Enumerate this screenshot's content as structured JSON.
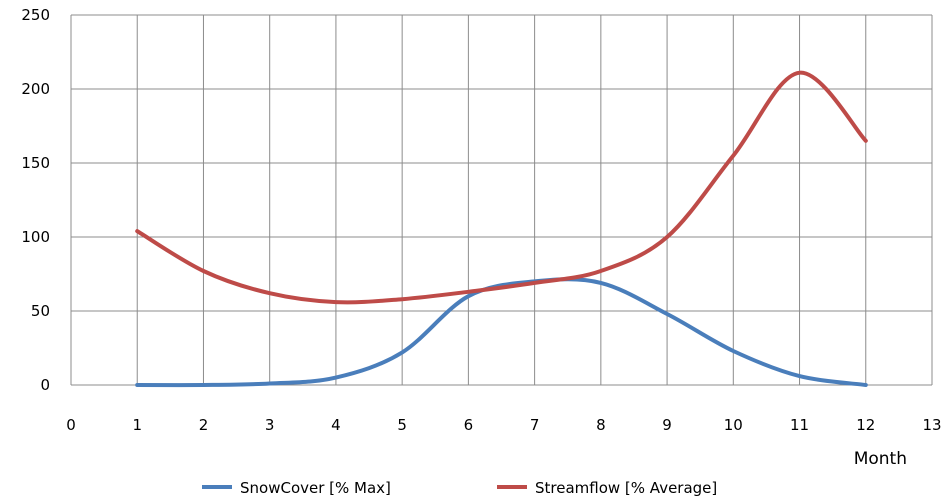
{
  "chart_data": {
    "type": "line",
    "title": "",
    "xlabel": "Month",
    "ylabel": "",
    "xlim": [
      0,
      13
    ],
    "ylim": [
      0,
      250
    ],
    "x_ticks": [
      0,
      1,
      2,
      3,
      4,
      5,
      6,
      7,
      8,
      9,
      10,
      11,
      12,
      13
    ],
    "y_ticks": [
      0,
      50,
      100,
      150,
      200,
      250
    ],
    "grid": true,
    "legend_position": "bottom",
    "series": [
      {
        "name": "SnowCover [% Max]",
        "color": "#4a7ebb",
        "x": [
          1,
          2,
          3,
          4,
          5,
          6,
          7,
          8,
          9,
          10,
          11,
          12
        ],
        "y": [
          0,
          0,
          1,
          5,
          22,
          60,
          70,
          69,
          48,
          23,
          6,
          0
        ]
      },
      {
        "name": "Streamflow [% Average]",
        "color": "#be4b48",
        "x": [
          1,
          2,
          3,
          4,
          5,
          6,
          7,
          8,
          9,
          10,
          11,
          12
        ],
        "y": [
          104,
          77,
          62,
          56,
          58,
          63,
          69,
          77,
          100,
          155,
          211,
          165
        ]
      }
    ]
  }
}
